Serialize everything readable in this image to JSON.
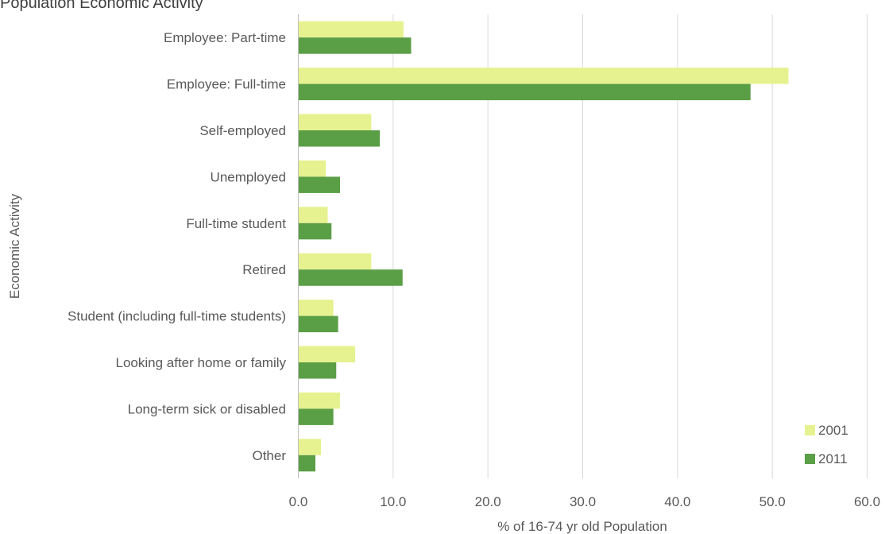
{
  "chart_data": {
    "type": "bar",
    "orientation": "horizontal",
    "title": "Population Economic Activity",
    "xlabel": "% of 16-74 yr old Population",
    "ylabel": "Economic Activity",
    "categories": [
      "Employee: Part-time",
      "Employee: Full-time",
      "Self-employed",
      "Unemployed",
      "Full-time student",
      "Retired",
      "Student (including full-time students)",
      "Looking after home or family",
      "Long-term sick or disabled",
      "Other"
    ],
    "series": [
      {
        "name": "2001",
        "color": "#e6f28f",
        "values": [
          11.1,
          51.7,
          7.7,
          2.9,
          3.1,
          7.7,
          3.7,
          6.0,
          4.4,
          2.4
        ]
      },
      {
        "name": "2011",
        "color": "#5a9e46",
        "values": [
          11.9,
          47.7,
          8.6,
          4.4,
          3.5,
          11.0,
          4.2,
          4.0,
          3.7,
          1.8
        ]
      }
    ],
    "xlim": [
      0,
      60
    ],
    "xticks": [
      "0.0",
      "10.0",
      "20.0",
      "30.0",
      "40.0",
      "50.0",
      "60.0"
    ],
    "grid": true,
    "legend": "bottom-right"
  }
}
